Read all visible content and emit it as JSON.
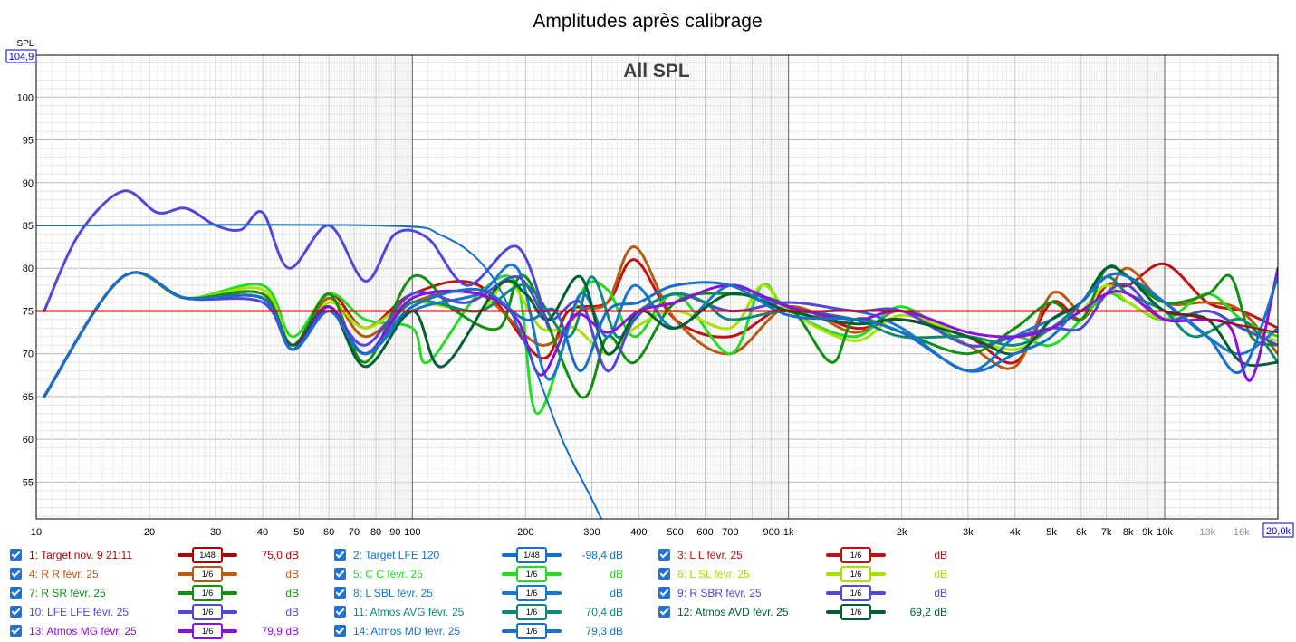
{
  "chart_data": {
    "type": "line",
    "title": "Amplitudes après calibrage",
    "overlay_title": "All SPL",
    "ylabel": "SPL",
    "xscale": "log",
    "xlim": [
      10,
      20000
    ],
    "ylim": [
      50.7,
      104.9
    ],
    "y_top_box": "104,9",
    "x_right_box": "20,0k",
    "y_ticks": [
      55,
      60,
      65,
      70,
      75,
      80,
      85,
      90,
      95,
      100
    ],
    "y_tick_labels": [
      "55",
      "60",
      "65",
      "70",
      "75",
      "80",
      "85",
      "90",
      "95",
      "100"
    ],
    "x_ticks": [
      10,
      20,
      30,
      40,
      50,
      60,
      70,
      80,
      90,
      100,
      200,
      300,
      400,
      500,
      600,
      700,
      900,
      1000,
      2000,
      3000,
      4000,
      5000,
      6000,
      7000,
      8000,
      9000,
      10000,
      13000,
      16000
    ],
    "x_tick_labels": [
      "10",
      "20",
      "30",
      "40",
      "50",
      "60",
      "70",
      "80",
      "90",
      "100",
      "200",
      "300",
      "400",
      "500",
      "600",
      "700",
      "900",
      "1k",
      "2k",
      "3k",
      "4k",
      "5k",
      "6k",
      "7k",
      "8k",
      "9k",
      "10k",
      "13k",
      "16k"
    ],
    "series": [
      {
        "name": "Target nov. 9 21:11",
        "color": "#b00000",
        "width": 2,
        "x": [
          10,
          10000,
          20000
        ],
        "y": [
          75,
          75,
          72.5
        ]
      },
      {
        "name": "Target LFE 120",
        "color": "#1070c8",
        "width": 2,
        "x": [
          10,
          80,
          120,
          160,
          200,
          250,
          300,
          340
        ],
        "y": [
          85,
          85,
          83.8,
          79.5,
          71,
          60,
          53,
          48
        ]
      },
      {
        "name": "L L févr. 25",
        "color": "#c01010",
        "width": 3,
        "x": [
          10.5,
          17,
          25,
          40,
          48,
          60,
          75,
          100,
          150,
          220,
          260,
          330,
          390,
          500,
          700,
          1000,
          1500,
          2000,
          3000,
          4000,
          5000,
          6000,
          7000,
          8000,
          10000,
          13000,
          16000,
          20000
        ],
        "y": [
          65,
          79,
          76.5,
          77,
          71,
          77,
          73,
          77,
          78,
          69.5,
          75,
          76,
          81,
          74,
          72,
          75.5,
          73,
          74,
          72,
          69,
          76,
          74,
          78,
          78,
          80.5,
          76,
          75,
          73
        ]
      },
      {
        "name": "R R févr. 25",
        "color": "#b85a10",
        "width": 3,
        "x": [
          10.5,
          17,
          25,
          40,
          48,
          60,
          75,
          100,
          150,
          220,
          280,
          330,
          390,
          500,
          700,
          1000,
          1500,
          2000,
          3000,
          4000,
          5000,
          6000,
          7000,
          8000,
          10000,
          13000,
          16000,
          20000
        ],
        "y": [
          65,
          79,
          76.5,
          77,
          71,
          76.5,
          72,
          76,
          77,
          71,
          75,
          76,
          82.5,
          74,
          70,
          75.5,
          72.5,
          75,
          71,
          68.5,
          77,
          75,
          77,
          80,
          76,
          76,
          75,
          70
        ]
      },
      {
        "name": "C C févr. 25",
        "color": "#22dd22",
        "width": 3,
        "x": [
          10.5,
          17,
          25,
          40,
          48,
          60,
          75,
          100,
          110,
          150,
          190,
          215,
          280,
          330,
          390,
          500,
          700,
          850,
          1000,
          1500,
          2000,
          3000,
          4000,
          5000,
          6000,
          7000,
          8000,
          10000,
          13000,
          16000,
          20000
        ],
        "y": [
          65,
          79,
          76.5,
          78,
          72,
          77,
          74,
          73,
          69,
          77,
          78,
          63,
          77,
          77.5,
          72,
          77,
          70,
          78,
          75,
          72,
          75.5,
          71,
          72,
          71,
          74,
          77,
          76,
          74,
          77,
          74,
          72
        ]
      },
      {
        "name": "L SL févr. 25",
        "color": "#a8e000",
        "width": 3,
        "x": [
          10.5,
          17,
          25,
          40,
          48,
          60,
          75,
          100,
          150,
          180,
          220,
          270,
          330,
          390,
          500,
          700,
          850,
          1000,
          1500,
          2000,
          3000,
          4000,
          5000,
          6000,
          7000,
          8000,
          10000,
          13000,
          16000,
          20000
        ],
        "y": [
          65,
          79,
          76.5,
          77.5,
          71,
          76,
          73,
          76,
          75,
          78.5,
          73,
          73,
          70,
          73,
          75,
          73,
          78,
          75,
          71.5,
          74.5,
          72,
          70.5,
          73,
          75,
          78,
          76,
          74,
          75,
          73,
          71.5
        ]
      },
      {
        "name": "R SR févr. 25",
        "color": "#109010",
        "width": 3,
        "x": [
          10.5,
          17,
          25,
          40,
          48,
          60,
          75,
          100,
          130,
          170,
          200,
          280,
          330,
          390,
          500,
          700,
          1000,
          1300,
          1500,
          2000,
          3000,
          4000,
          5000,
          6000,
          7000,
          8000,
          10000,
          13000,
          15000,
          17000,
          20000
        ],
        "y": [
          65,
          79,
          76.5,
          77,
          70.5,
          77,
          69,
          79,
          75,
          73,
          79,
          65,
          72,
          69,
          76,
          77,
          75.5,
          69,
          74,
          72.5,
          70,
          73,
          76,
          74,
          80,
          79,
          76,
          77,
          79,
          72,
          71
        ]
      },
      {
        "name": "L SBL févr. 25",
        "color": "#1878d0",
        "width": 3,
        "x": [
          10.5,
          17,
          25,
          40,
          48,
          60,
          75,
          100,
          150,
          190,
          230,
          280,
          330,
          390,
          500,
          700,
          1000,
          1500,
          2000,
          3000,
          4000,
          5000,
          6000,
          7000,
          8000,
          10000,
          13000,
          16000,
          20000
        ],
        "y": [
          65,
          79,
          76.5,
          76.5,
          70.5,
          75.5,
          70,
          75,
          77,
          80,
          67,
          77,
          72,
          78,
          73,
          78,
          75,
          75,
          73,
          68,
          72,
          74,
          76,
          79,
          79,
          76,
          72,
          70,
          73
        ]
      },
      {
        "name": "R SBR févr. 25",
        "color": "#5048d8",
        "width": 3,
        "x": [
          10.5,
          17,
          25,
          40,
          48,
          60,
          75,
          100,
          140,
          190,
          230,
          280,
          330,
          390,
          500,
          700,
          1000,
          1500,
          2000,
          3000,
          4000,
          5000,
          6000,
          7000,
          8000,
          10000,
          13000,
          16000,
          20000
        ],
        "y": [
          65,
          79,
          76.5,
          76,
          70.5,
          75,
          71,
          77,
          76,
          79,
          74,
          76,
          68,
          74,
          77,
          75,
          76,
          75,
          75,
          71,
          72,
          73,
          73,
          77,
          78,
          74,
          75,
          73,
          71
        ]
      },
      {
        "name": "LFE LFE févr. 25",
        "color": "#5048d8",
        "width": 3,
        "x": [
          10.5,
          13,
          17,
          21,
          25,
          30,
          35,
          40,
          47,
          60,
          75,
          90,
          110,
          140,
          190,
          230
        ],
        "y": [
          75,
          84,
          89,
          86.5,
          87,
          85,
          84.5,
          86.5,
          80,
          85,
          78.5,
          84,
          83.5,
          78,
          82.5,
          73
        ]
      },
      {
        "name": "Atmos AVG févr. 25",
        "color": "#108878",
        "width": 3,
        "x": [
          10.5,
          17,
          25,
          40,
          48,
          60,
          75,
          100,
          150,
          200,
          260,
          300,
          350,
          400,
          500,
          600,
          700,
          1000,
          1500,
          2000,
          3000,
          4000,
          5000,
          6000,
          7000,
          8000,
          10000,
          12000,
          16000,
          20000
        ],
        "y": [
          65,
          79,
          76.5,
          76.5,
          70.5,
          75,
          70,
          76,
          75,
          78,
          72,
          79,
          72,
          75,
          77,
          76,
          74,
          75,
          74,
          72,
          72,
          71,
          73,
          76,
          79,
          77,
          75,
          72,
          74,
          69
        ]
      },
      {
        "name": "Atmos AVD févr. 25",
        "color": "#006030",
        "width": 3,
        "x": [
          10.5,
          17,
          25,
          40,
          48,
          60,
          75,
          100,
          120,
          170,
          200,
          230,
          280,
          330,
          400,
          500,
          700,
          1000,
          1500,
          2000,
          3000,
          4000,
          5000,
          6000,
          7000,
          8000,
          10000,
          13000,
          16000,
          20000
        ],
        "y": [
          65,
          79,
          76.5,
          76.5,
          71,
          75.5,
          68.5,
          75,
          68.5,
          78,
          77,
          74,
          79,
          70,
          75,
          73,
          77,
          75,
          73.5,
          74,
          72,
          70,
          74,
          76,
          80,
          79,
          75,
          74,
          69,
          69
        ]
      },
      {
        "name": "Atmos MG févr. 25",
        "color": "#8a10e0",
        "width": 3,
        "x": [
          10.5,
          17,
          25,
          40,
          48,
          60,
          75,
          100,
          150,
          190,
          220,
          270,
          330,
          400,
          500,
          700,
          1000,
          1500,
          2000,
          3000,
          4000,
          5000,
          6000,
          7000,
          8000,
          10000,
          13000,
          15000,
          17000,
          20000
        ],
        "y": [
          65,
          79,
          76.5,
          76.5,
          70.5,
          75.5,
          70,
          76.5,
          77,
          74,
          67.5,
          74.5,
          72.5,
          75,
          76,
          78,
          75.5,
          74,
          75,
          72.5,
          72,
          73,
          75,
          77,
          77,
          74,
          74,
          73,
          67,
          80
        ]
      },
      {
        "name": "Atmos MD févr. 25",
        "color": "#1870c8",
        "width": 3,
        "x": [
          10.5,
          17,
          25,
          40,
          48,
          60,
          75,
          100,
          150,
          200,
          240,
          280,
          330,
          400,
          500,
          700,
          1000,
          1500,
          2000,
          3000,
          4000,
          5000,
          6000,
          7000,
          8000,
          10000,
          13000,
          16000,
          20000
        ],
        "y": [
          65,
          79,
          76.5,
          76.5,
          70.5,
          75,
          70,
          75.5,
          77.5,
          74,
          75,
          68,
          75,
          76,
          78,
          78,
          74.5,
          74,
          72.5,
          68,
          70,
          72,
          76,
          79,
          79,
          76,
          72,
          68,
          79
        ]
      }
    ]
  },
  "legend": [
    {
      "label": "1: Target nov. 9 21:11",
      "smooth": "48",
      "value": "75,0 dB",
      "color": "#b00000",
      "text_color": "#b00000",
      "value_color": "#b00000"
    },
    {
      "label": "2: Target LFE 120",
      "smooth": "48",
      "value": "-98,4 dB",
      "color": "#1070c8",
      "text_color": "#1070c8",
      "value_color": "#1070c8"
    },
    {
      "label": "3: L L févr. 25",
      "smooth": "6",
      "value": "dB",
      "color": "#c01010",
      "text_color": "#c01010",
      "value_color": "#c01010"
    },
    {
      "label": "4: R R févr. 25",
      "smooth": "6",
      "value": "dB",
      "color": "#b85a10",
      "text_color": "#b85a10",
      "value_color": "#b85a10"
    },
    {
      "label": "5: C C févr. 25",
      "smooth": "6",
      "value": "dB",
      "color": "#22dd22",
      "text_color": "#22dd22",
      "value_color": "#22dd22"
    },
    {
      "label": "6: L SL févr. 25",
      "smooth": "6",
      "value": "dB",
      "color": "#a8e000",
      "text_color": "#a8e000",
      "value_color": "#a8e000"
    },
    {
      "label": "7: R SR févr. 25",
      "smooth": "6",
      "value": "dB",
      "color": "#109010",
      "text_color": "#109010",
      "value_color": "#109010"
    },
    {
      "label": "8: L SBL févr. 25",
      "smooth": "6",
      "value": "dB",
      "color": "#1878d0",
      "text_color": "#1878d0",
      "value_color": "#1878d0"
    },
    {
      "label": "9: R SBR févr. 25",
      "smooth": "6",
      "value": "dB",
      "color": "#5048d8",
      "text_color": "#5048d8",
      "value_color": "#5048d8"
    },
    {
      "label": "10: LFE LFE févr. 25",
      "smooth": "6",
      "value": "dB",
      "color": "#5048d8",
      "text_color": "#5048d8",
      "value_color": "#5048d8"
    },
    {
      "label": "11: Atmos AVG févr. 25",
      "smooth": "6",
      "value": "70,4 dB",
      "color": "#108878",
      "text_color": "#108878",
      "value_color": "#108878"
    },
    {
      "label": "12: Atmos AVD févr. 25",
      "smooth": "6",
      "value": "69,2 dB",
      "color": "#006030",
      "text_color": "#006030",
      "value_color": "#006030"
    },
    {
      "label": "13: Atmos MG févr. 25",
      "smooth": "6",
      "value": "79,9 dB",
      "color": "#8a10e0",
      "text_color": "#8a10e0",
      "value_color": "#8a10e0"
    },
    {
      "label": "14: Atmos MD févr. 25",
      "smooth": "6",
      "value": "79,3 dB",
      "color": "#1870c8",
      "text_color": "#1870c8",
      "value_color": "#1870c8"
    }
  ]
}
